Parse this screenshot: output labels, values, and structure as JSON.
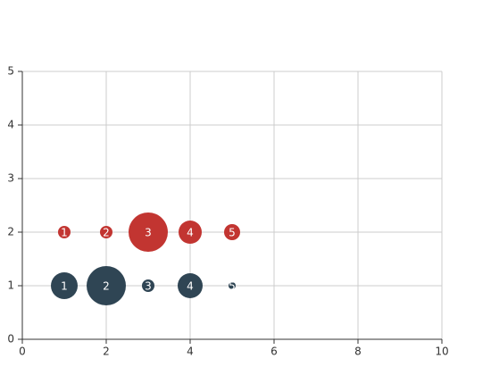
{
  "chart_data": {
    "type": "scatter",
    "series": [
      {
        "color": "#c23531",
        "x": [
          1,
          2,
          3,
          4,
          5
        ],
        "values": [
          2,
          2,
          2,
          2,
          2
        ],
        "size": [
          14,
          14,
          44,
          26,
          18
        ]
      },
      {
        "color": "#2f4554",
        "x": [
          1,
          2,
          3,
          4,
          5
        ],
        "values": [
          1,
          1,
          1,
          1,
          1
        ],
        "size": [
          30,
          44,
          14,
          28,
          8
        ]
      }
    ],
    "xlim": [
      0,
      10
    ],
    "xticks": [
      0,
      2,
      4,
      6,
      8,
      10
    ],
    "ylim": [
      0,
      5
    ],
    "yticks": [
      0,
      1,
      2,
      3,
      4,
      5
    ],
    "grid": true
  }
}
